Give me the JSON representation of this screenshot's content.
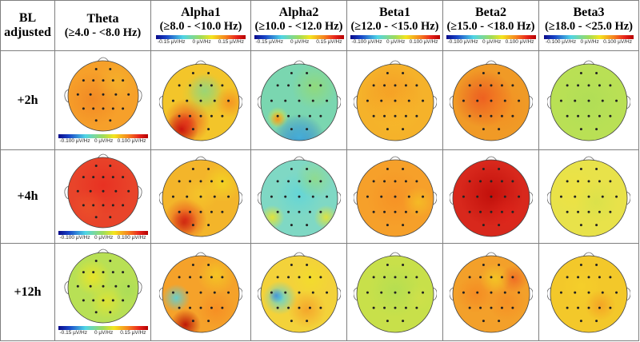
{
  "corner": {
    "line1": "BL",
    "line2": "adjusted"
  },
  "bands": [
    {
      "name": "Theta",
      "range": "(≥4.0 - <8.0 Hz)"
    },
    {
      "name": "Alpha1",
      "range": "(≥8.0 - <10.0 Hz)",
      "cbar": [
        "-0.15 µV/Hz",
        "0 µV/Hz",
        "0.15 µV/Hz"
      ]
    },
    {
      "name": "Alpha2",
      "range": "(≥10.0 - <12.0 Hz)",
      "cbar": [
        "-0.15 µV/Hz",
        "0 µV/Hz",
        "0.15 µV/Hz"
      ]
    },
    {
      "name": "Beta1",
      "range": "(≥12.0 - <15.0 Hz)",
      "cbar": [
        "-0.100 µV/Hz",
        "0 µV/Hz",
        "0.100 µV/Hz"
      ]
    },
    {
      "name": "Beta2",
      "range": "(≥15.0 - <18.0 Hz)",
      "cbar": [
        "-0.100 µV/Hz",
        "0 µV/Hz",
        "0.100 µV/Hz"
      ]
    },
    {
      "name": "Beta3",
      "range": "(≥18.0 - <25.0 Hz)",
      "cbar": [
        "-0.100 µV/Hz",
        "0 µV/Hz",
        "0.100 µV/Hz"
      ]
    }
  ],
  "theta_cbars": {
    "r0": [
      "-0.100 µV/Hz",
      "0 µV/Hz",
      "0.100 µV/Hz"
    ],
    "r1": [
      "-0.100 µV/Hz",
      "0 µV/Hz",
      "0.100 µV/Hz"
    ],
    "r2": [
      "-0.15 µV/Hz",
      "0 µV/Hz",
      "0.15 µV/Hz"
    ]
  },
  "rows": [
    {
      "label": "+2h"
    },
    {
      "label": "+4h"
    },
    {
      "label": "+12h"
    }
  ],
  "colors": {
    "border": "#7f7f7f",
    "dark_red": "#b40000",
    "red": "#e8251d",
    "orange": "#f6821f",
    "yellow": "#f3e51f",
    "green": "#9fdc5a",
    "cyan": "#4fd4e6",
    "blue": "#1846c8",
    "dark_blue": "#0a0a8a"
  }
}
